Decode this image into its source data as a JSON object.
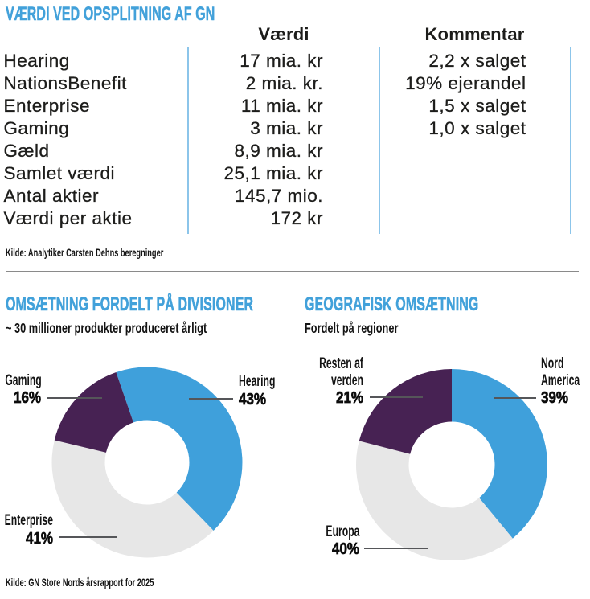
{
  "colors": {
    "accent_blue": "#42a1da",
    "slice_blue": "#3fa0db",
    "slice_gray": "#e7e7e7",
    "slice_purple": "#472253",
    "table_line_blue": "#8cc5ea",
    "divider_gray": "#8a8a8a",
    "leader_line": "#555659",
    "text": "#1d1d1b"
  },
  "valuation": {
    "title": "VÆRDI VED OPSPLITNING AF GN",
    "columns": {
      "value": "Værdi",
      "comment": "Kommentar"
    },
    "rows": [
      {
        "label": "Hearing",
        "value": "17 mia. kr",
        "comment": "2,2 x salget"
      },
      {
        "label": "NationsBenefit",
        "value": "2 mia. kr.",
        "comment": "19% ejerandel"
      },
      {
        "label": "Enterprise",
        "value": "11 mia. kr",
        "comment": "1,5 x salget"
      },
      {
        "label": "Gaming",
        "value": "3 mia. kr",
        "comment": "1,0 x salget"
      },
      {
        "label": "Gæld",
        "value": "8,9 mia. kr",
        "comment": ""
      },
      {
        "label": "Samlet værdi",
        "value": "25,1 mia. kr",
        "comment": ""
      },
      {
        "label": "Antal aktier",
        "value": "145,7 mio.",
        "comment": ""
      },
      {
        "label": "Værdi per aktie",
        "value": "172 kr",
        "comment": ""
      }
    ],
    "source": "Kilde: Analytiker Carsten Dehns beregninger"
  },
  "divisions": {
    "title": "OMSÆTNING FORDELT PÅ DIVISIONER",
    "subtitle": "~ 30 millioner produkter produceret årligt",
    "chart_data": {
      "type": "pie",
      "donut": true,
      "start_angle_deg": -19,
      "unit": "%",
      "slices": [
        {
          "label": "Hearing",
          "value": 43,
          "color": "#3fa0db"
        },
        {
          "label": "Enterprise",
          "value": 41,
          "color": "#e7e7e7"
        },
        {
          "label": "Gaming",
          "value": 16,
          "color": "#472253"
        }
      ]
    }
  },
  "geography": {
    "title": "GEOGRAFISK OMSÆTNING",
    "subtitle": "Fordelt på regioner",
    "chart_data": {
      "type": "pie",
      "donut": true,
      "start_angle_deg": 0,
      "unit": "%",
      "slices": [
        {
          "label": "Nord America",
          "value": 39,
          "color": "#3fa0db"
        },
        {
          "label": "Europa",
          "value": 40,
          "color": "#e7e7e7"
        },
        {
          "label": "Resten af verden",
          "value": 21,
          "color": "#472253"
        }
      ]
    }
  },
  "footer_source": "Kilde: GN Store Nords årsrapport for 2025"
}
